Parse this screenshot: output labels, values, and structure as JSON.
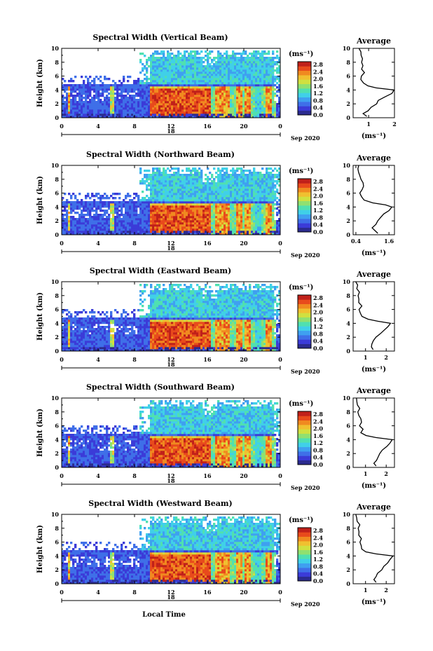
{
  "figure": {
    "xlabel": "Local Time",
    "date_label": "Sep 2020",
    "day_label": "18",
    "unit_label": "(ms⁻¹)",
    "profile_title": "Average",
    "profile_xlabel": "(ms⁻¹)",
    "ylabel": "Height (km)",
    "colorbar_ticks": [
      "2.8",
      "2.4",
      "2.0",
      "1.6",
      "1.2",
      "0.8",
      "0.4",
      "0.0"
    ],
    "colors": {
      "colormap": [
        "#2b2b8f",
        "#3b3bd8",
        "#3f6fe8",
        "#3fa0f0",
        "#40d0e8",
        "#50e0b0",
        "#90e070",
        "#d0e040",
        "#f0c030",
        "#f08a20",
        "#e84a1c",
        "#c0201a"
      ]
    }
  },
  "chart_data": [
    {
      "type": "heatmap",
      "title": "Spectral Width (Vertical Beam)",
      "xticks": [
        "0",
        "4",
        "8",
        "12",
        "16",
        "20",
        "0"
      ],
      "yticks": [
        "0",
        "2",
        "4",
        "6",
        "8",
        "10"
      ],
      "xlim": [
        0,
        24
      ],
      "ylim": [
        0,
        10
      ],
      "clim": [
        0,
        3.0
      ],
      "profile": {
        "xticks": [
          "1",
          "2"
        ],
        "xlim": [
          0.4,
          2.0
        ],
        "yticks": [
          "0",
          "2",
          "4",
          "6",
          "8",
          "10"
        ],
        "height": [
          0.2,
          0.6,
          1.0,
          1.5,
          2.0,
          2.5,
          3.0,
          3.5,
          4.0,
          4.3,
          4.6,
          5.0,
          5.5,
          6.0,
          6.5,
          7.0,
          7.5,
          8.0,
          8.5,
          9.0,
          9.5,
          10.0
        ],
        "values": [
          0.9,
          0.8,
          1.0,
          1.1,
          1.3,
          1.4,
          1.6,
          1.9,
          2.0,
          1.3,
          1.0,
          0.8,
          0.7,
          0.75,
          0.85,
          0.7,
          0.8,
          0.7,
          0.75,
          0.7,
          0.7,
          0.65
        ]
      }
    },
    {
      "type": "heatmap",
      "title": "Spectral Width (Northward Beam)",
      "xticks": [
        "0",
        "4",
        "8",
        "12",
        "16",
        "20",
        "0"
      ],
      "yticks": [
        "0",
        "2",
        "4",
        "6",
        "8",
        "10"
      ],
      "xlim": [
        0,
        24
      ],
      "ylim": [
        0,
        10
      ],
      "clim": [
        0,
        3.0
      ],
      "profile": {
        "xticks": [
          "0.4",
          "1.6"
        ],
        "xlim": [
          0.3,
          1.8
        ],
        "yticks": [
          "0",
          "2",
          "4",
          "6",
          "8",
          "10"
        ],
        "height": [
          0.2,
          0.6,
          1.0,
          1.5,
          2.0,
          2.5,
          3.0,
          3.5,
          4.0,
          4.3,
          4.6,
          5.0,
          5.5,
          6.0,
          6.5,
          7.0,
          7.5,
          8.0,
          8.5,
          9.0,
          9.5,
          10.0
        ],
        "values": [
          1.2,
          1.1,
          1.0,
          1.1,
          1.2,
          1.3,
          1.4,
          1.6,
          1.7,
          1.5,
          1.0,
          0.7,
          0.6,
          0.55,
          0.6,
          0.7,
          0.65,
          0.6,
          0.55,
          0.5,
          0.5,
          0.5
        ]
      }
    },
    {
      "type": "heatmap",
      "title": "Spectral Width (Eastward Beam)",
      "xticks": [
        "0",
        "4",
        "8",
        "12",
        "16",
        "20",
        "0"
      ],
      "yticks": [
        "0",
        "2",
        "4",
        "6",
        "8",
        "10"
      ],
      "xlim": [
        0,
        24
      ],
      "ylim": [
        0,
        10
      ],
      "clim": [
        0,
        3.0
      ],
      "profile": {
        "xticks": [
          "1",
          "2"
        ],
        "xlim": [
          0.4,
          2.4
        ],
        "yticks": [
          "0",
          "2",
          "4",
          "6",
          "8",
          "10"
        ],
        "height": [
          0.2,
          0.6,
          1.0,
          1.5,
          2.0,
          2.5,
          3.0,
          3.5,
          4.0,
          4.3,
          4.6,
          5.0,
          5.5,
          6.0,
          6.5,
          7.0,
          7.5,
          8.0,
          8.5,
          9.0,
          9.5,
          10.0
        ],
        "values": [
          1.4,
          1.3,
          1.3,
          1.4,
          1.5,
          1.7,
          1.9,
          2.1,
          2.2,
          1.6,
          1.1,
          0.8,
          0.75,
          0.7,
          0.8,
          0.7,
          0.7,
          0.65,
          0.7,
          0.6,
          0.6,
          0.55
        ]
      }
    },
    {
      "type": "heatmap",
      "title": "Spectral Width (Southward Beam)",
      "xticks": [
        "0",
        "4",
        "8",
        "12",
        "16",
        "20",
        "0"
      ],
      "yticks": [
        "0",
        "2",
        "4",
        "6",
        "8",
        "10"
      ],
      "xlim": [
        0,
        24
      ],
      "ylim": [
        0,
        10
      ],
      "clim": [
        0,
        3.0
      ],
      "profile": {
        "xticks": [
          "1",
          "2"
        ],
        "xlim": [
          0.4,
          2.4
        ],
        "yticks": [
          "0",
          "2",
          "4",
          "6",
          "8",
          "10"
        ],
        "height": [
          0.2,
          0.6,
          1.0,
          1.5,
          2.0,
          2.5,
          3.0,
          3.5,
          4.0,
          4.3,
          4.6,
          5.0,
          5.5,
          6.0,
          6.5,
          7.0,
          7.5,
          8.0,
          8.5,
          9.0,
          9.5,
          10.0
        ],
        "values": [
          1.5,
          1.4,
          1.5,
          1.6,
          1.7,
          1.8,
          2.0,
          2.2,
          2.3,
          1.5,
          1.0,
          0.8,
          0.9,
          0.7,
          0.8,
          0.75,
          0.7,
          0.65,
          0.7,
          0.6,
          0.6,
          0.55
        ]
      }
    },
    {
      "type": "heatmap",
      "title": "Spectral Width (Westward Beam)",
      "xticks": [
        "0",
        "4",
        "8",
        "12",
        "16",
        "20",
        "0"
      ],
      "yticks": [
        "0",
        "2",
        "4",
        "6",
        "8",
        "10"
      ],
      "xlim": [
        0,
        24
      ],
      "ylim": [
        0,
        10
      ],
      "clim": [
        0,
        3.0
      ],
      "profile": {
        "xticks": [
          "1",
          "2"
        ],
        "xlim": [
          0.4,
          2.4
        ],
        "yticks": [
          "0",
          "2",
          "4",
          "6",
          "8",
          "10"
        ],
        "height": [
          0.2,
          0.6,
          1.0,
          1.5,
          2.0,
          2.5,
          3.0,
          3.5,
          4.0,
          4.3,
          4.6,
          5.0,
          5.5,
          6.0,
          6.5,
          7.0,
          7.5,
          8.0,
          8.5,
          9.0,
          9.5,
          10.0
        ],
        "values": [
          1.5,
          1.4,
          1.5,
          1.6,
          1.8,
          1.9,
          2.1,
          2.2,
          2.3,
          1.5,
          1.0,
          0.8,
          0.8,
          0.75,
          0.8,
          0.7,
          0.7,
          0.65,
          0.7,
          0.6,
          0.6,
          0.55
        ]
      }
    }
  ]
}
